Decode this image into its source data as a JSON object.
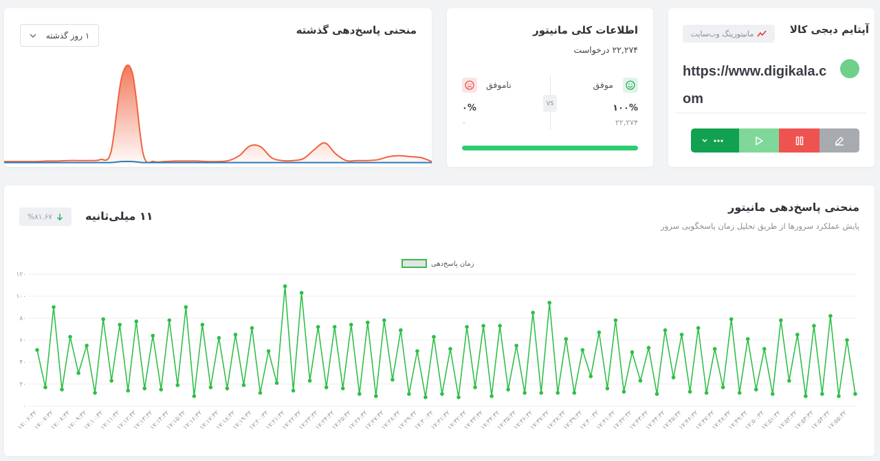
{
  "monitor": {
    "title": "آپتایم دیجی کالا",
    "badge": "مانیتورینگ وب‌سایت",
    "url": "https://www.digikala.com"
  },
  "overview": {
    "title": "اطلاعات کلی مانیتور",
    "requests": "۲۲,۲۷۴ درخواست",
    "vs": "VS",
    "success": {
      "label": "موفق",
      "percent": "۱۰۰%",
      "count": "۲۲,۲۷۴"
    },
    "failure": {
      "label": "ناموفق",
      "percent": "۰%",
      "count": "۰"
    }
  },
  "summary": {
    "current": "۱۱ میلی‌ثانیه",
    "change": "%۸۱.۶۷"
  },
  "chart_data": [
    {
      "type": "line",
      "title": "منحنی پاسخ‌دهی گذشته",
      "range_label": "۱ روز گذشته",
      "ylim": [
        0,
        100
      ],
      "series": [
        {
          "color": "#f0623f",
          "values": [
            2,
            2,
            2,
            2,
            2.5,
            2.5,
            3,
            3,
            3,
            4,
            12,
            88,
            92,
            10,
            2,
            2,
            2.5,
            2.5,
            2.5,
            2,
            2,
            3,
            8,
            18,
            17,
            6,
            3,
            3,
            5,
            14,
            21,
            10,
            3,
            3,
            3,
            4,
            7,
            8,
            7,
            6,
            2
          ]
        },
        {
          "color": "#2b7bb9",
          "values": [
            1,
            1,
            1,
            1,
            1,
            1,
            1,
            1,
            1,
            1,
            1,
            2,
            2,
            1,
            1,
            1,
            1,
            1,
            1,
            1,
            1,
            1,
            1,
            1,
            1,
            1,
            1,
            1,
            1,
            1,
            1,
            1,
            1,
            1,
            1,
            1,
            1,
            1,
            1,
            1,
            1
          ]
        }
      ]
    },
    {
      "type": "line",
      "title": "منحنی پاسخ‌دهی مانیتور",
      "subtitle": "پایش عملکرد سرورها از طریق تحلیل زمان پاسخگویی سرور",
      "ylim": [
        0,
        120
      ],
      "yticks": [
        {
          "value": 0,
          "label": "۰"
        },
        {
          "value": 20,
          "label": "۲۰"
        },
        {
          "value": 40,
          "label": "۴۰"
        },
        {
          "value": 60,
          "label": "۶۰"
        },
        {
          "value": 80,
          "label": "۸۰"
        },
        {
          "value": 100,
          "label": "۱۰۰"
        },
        {
          "value": 120,
          "label": "۱۲۰"
        }
      ],
      "grid": true,
      "legend": "top",
      "categories": [
        "۱۷:۰۶:۳۲",
        null,
        "۱۷:۰۷:۳۲",
        null,
        "۱۷:۰۸:۳۲",
        null,
        "۱۷:۰۹:۳۲",
        null,
        "۱۷:۱۰:۳۲",
        null,
        "۱۷:۱۱:۳۲",
        null,
        "۱۷:۱۲:۳۲",
        null,
        "۱۷:۱۳:۳۲",
        null,
        "۱۷:۱۴:۳۲",
        null,
        "۱۷:۱۵:۳۲",
        null,
        "۱۷:۱۶:۳۲",
        null,
        "۱۷:۱۷:۳۲",
        null,
        "۱۷:۱۸:۳۲",
        null,
        "۱۷:۱۹:۳۲",
        null,
        "۱۷:۲۰:۳۲",
        null,
        "۱۷:۲۱:۳۲",
        null,
        "۱۷:۲۲:۳۲",
        null,
        "۱۷:۲۳:۳۲",
        null,
        "۱۷:۲۴:۳۲",
        null,
        "۱۷:۲۵:۳۲",
        null,
        "۱۷:۲۶:۳۲",
        null,
        "۱۷:۲۷:۳۲",
        null,
        "۱۷:۲۸:۳۲",
        null,
        "۱۷:۲۹:۳۲",
        null,
        "۱۷:۳۰:۳۲",
        null,
        "۱۷:۳۱:۳۲",
        null,
        "۱۷:۳۲:۳۲",
        null,
        "۱۷:۳۳:۳۲",
        null,
        "۱۷:۳۴:۳۲",
        null,
        "۱۷:۳۵:۳۲",
        null,
        "۱۷:۳۶:۳۲",
        null,
        "۱۷:۳۷:۳۲",
        null,
        "۱۷:۳۸:۳۲",
        null,
        "۱۷:۳۹:۳۲",
        null,
        "۱۷:۴۰:۳۲",
        null,
        "۱۷:۴۱:۳۲",
        null,
        "۱۷:۴۲:۳۲",
        null,
        "۱۷:۴۳:۳۲",
        null,
        "۱۷:۴۴:۳۲",
        null,
        "۱۷:۴۵:۳۲",
        null,
        "۱۷:۴۶:۳۲",
        null,
        "۱۷:۴۷:۳۲",
        null,
        "۱۷:۴۸:۳۲",
        null,
        "۱۷:۴۹:۳۲",
        null,
        "۱۷:۵۰:۳۲",
        null,
        "۱۷:۵۱:۳۲",
        null,
        "۱۷:۵۲:۳۲",
        null,
        "۱۷:۵۳:۳۲",
        null,
        "۱۷:۵۴:۳۲",
        null,
        "۱۷:۵۵:۳۲",
        null
      ],
      "series": [
        {
          "name": "زمان پاسخ‌دهی",
          "color": "#2fbf47",
          "values": [
            51,
            17,
            90,
            15,
            63,
            30,
            55,
            12,
            79,
            23,
            74,
            14,
            77,
            16,
            64,
            15,
            78,
            19,
            90,
            9,
            74,
            17,
            62,
            16,
            65,
            19,
            71,
            12,
            50,
            21,
            109,
            14,
            103,
            23,
            72,
            17,
            72,
            16,
            74,
            11,
            76,
            9,
            78,
            24,
            69,
            11,
            50,
            8,
            63,
            11,
            52,
            8,
            72,
            17,
            73,
            9,
            73,
            15,
            55,
            12,
            85,
            12,
            94,
            12,
            61,
            12,
            51,
            27,
            67,
            16,
            78,
            13,
            49,
            23,
            53,
            11,
            69,
            26,
            65,
            13,
            71,
            12,
            52,
            17,
            79,
            12,
            61,
            15,
            52,
            11,
            78,
            23,
            65,
            9,
            73,
            11,
            82,
            9,
            60,
            11
          ]
        }
      ]
    }
  ]
}
